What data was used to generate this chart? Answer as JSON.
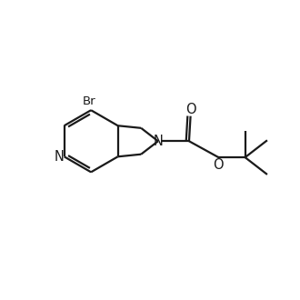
{
  "bg_color": "#ffffff",
  "line_color": "#1a1a1a",
  "line_width": 1.6,
  "font_size": 9.5,
  "figsize": [
    3.3,
    3.3
  ],
  "dpi": 100,
  "xlim": [
    0,
    10
  ],
  "ylim": [
    0,
    10
  ]
}
